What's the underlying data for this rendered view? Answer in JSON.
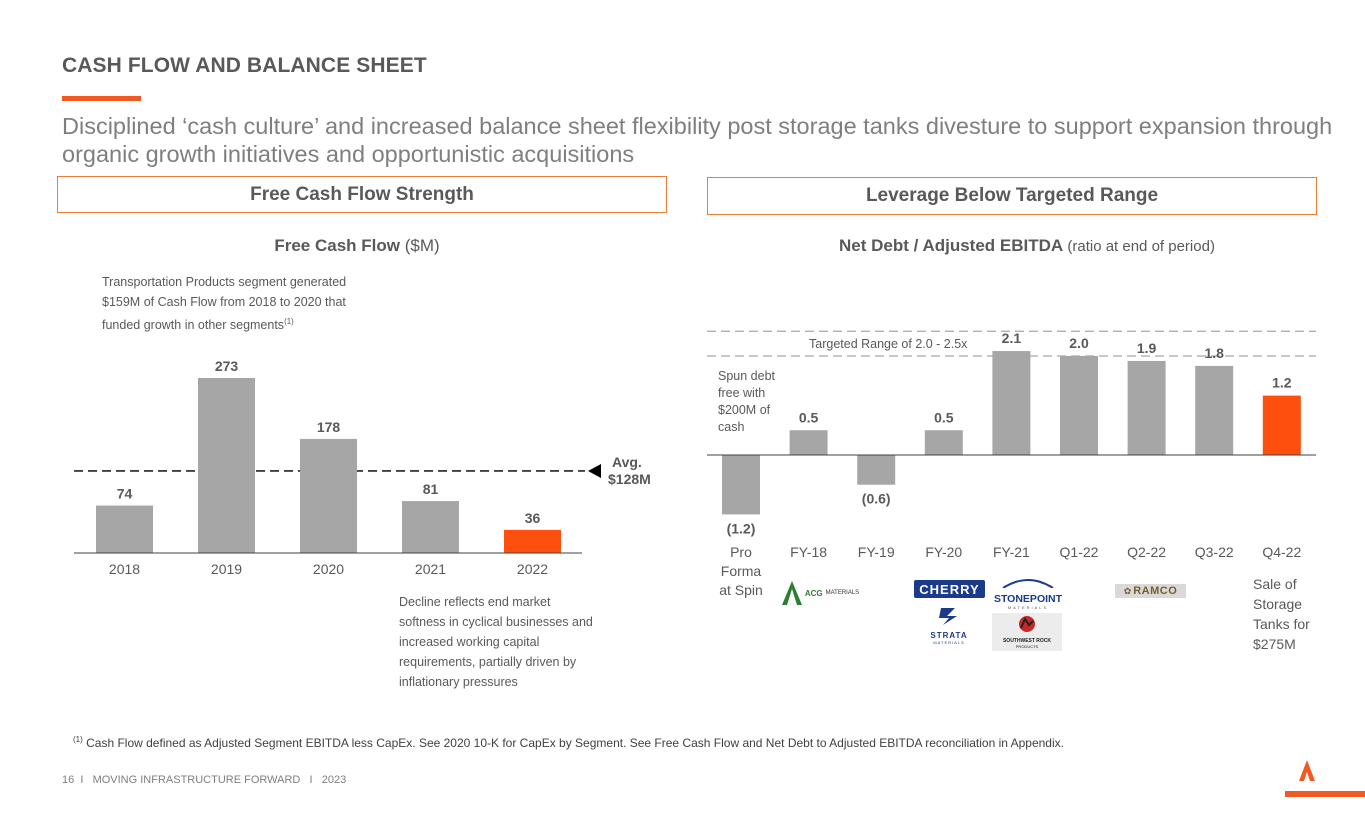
{
  "slide": {
    "title": "CASH FLOW AND BALANCE SHEET",
    "subtitle": "Disciplined ‘cash culture’ and increased balance sheet flexibility post storage tanks divesture to support expansion through organic growth initiatives and opportunistic acquisitions",
    "footnote_marker": "(1)",
    "footnote_text": " Cash Flow defined as Adjusted Segment EBITDA less CapEx. See 2020 10-K for CapEx by Segment. See Free Cash Flow and Net Debt to Adjusted EBITDA reconciliation in Appendix.",
    "footer": "16  I   MOVING INFRASTRUCTURE FORWARD   I   2023",
    "accent_color": "#F05A22"
  },
  "left_panel": {
    "header": "Free Cash Flow Strength",
    "chart_title_bold": "Free Cash Flow",
    "chart_title_unit": " ($M)",
    "note_top": "Transportation Products segment generated $159M of Cash Flow from 2018 to 2020 that funded growth in other segments",
    "note_top_sup": "(1)",
    "note_bottom": "Decline reflects end market softness in cyclical businesses and increased working capital requirements, partially driven by inflationary pressures",
    "avg_label_1": "Avg.",
    "avg_label_2": "$128M"
  },
  "right_panel": {
    "header": "Leverage Below Targeted Range",
    "chart_title_bold": "Net Debt / Adjusted EBITDA",
    "chart_title_unit": " (ratio at end of period)",
    "target_label": "Targeted Range of 2.0 - 2.5x",
    "note_spun": "Spun debt free with $200M of cash",
    "note_sale": "Sale of Storage Tanks for $275M",
    "logos": {
      "aco": "ACG",
      "aco_sub": "MATERIALS",
      "cherry": "CHERRY",
      "strata": "STRATA",
      "strata_sub": "MATERIALS",
      "stonepoint": "STONEPOINT",
      "stonepoint_sub": "MATERIALS",
      "southwest": "SOUTHWEST ROCK",
      "southwest_sub": "PRODUCTS",
      "ramco": "RAMCO"
    }
  },
  "chart_data": [
    {
      "type": "bar",
      "title": "Free Cash Flow ($M)",
      "categories": [
        "2018",
        "2019",
        "2020",
        "2021",
        "2022"
      ],
      "values": [
        74,
        273,
        178,
        81,
        36
      ],
      "labels": [
        "74",
        "273",
        "178",
        "81",
        "36"
      ],
      "highlight_index": 4,
      "average_line": 128,
      "bar_color": "#A6A6A6",
      "highlight_color": "#FF4F0F"
    },
    {
      "type": "bar",
      "title": "Net Debt / Adjusted EBITDA (ratio at end of period)",
      "categories": [
        "Pro Forma at Spin",
        "FY-18",
        "FY-19",
        "FY-20",
        "FY-21",
        "Q1-22",
        "Q2-22",
        "Q3-22",
        "Q4-22"
      ],
      "category_lines": [
        [
          "Pro",
          "Forma",
          "at Spin"
        ],
        [
          "FY-18"
        ],
        [
          "FY-19"
        ],
        [
          "FY-20"
        ],
        [
          "FY-21"
        ],
        [
          "Q1-22"
        ],
        [
          "Q2-22"
        ],
        [
          "Q3-22"
        ],
        [
          "Q4-22"
        ]
      ],
      "values": [
        -1.2,
        0.5,
        -0.6,
        0.5,
        2.1,
        2.0,
        1.9,
        1.8,
        1.2
      ],
      "labels": [
        "(1.2)",
        "0.5",
        "(0.6)",
        "0.5",
        "2.1",
        "2.0",
        "1.9",
        "1.8",
        "1.2"
      ],
      "highlight_index": 8,
      "target_range": [
        2.0,
        2.5
      ],
      "bar_color": "#A6A6A6",
      "highlight_color": "#FF4F0F"
    }
  ]
}
